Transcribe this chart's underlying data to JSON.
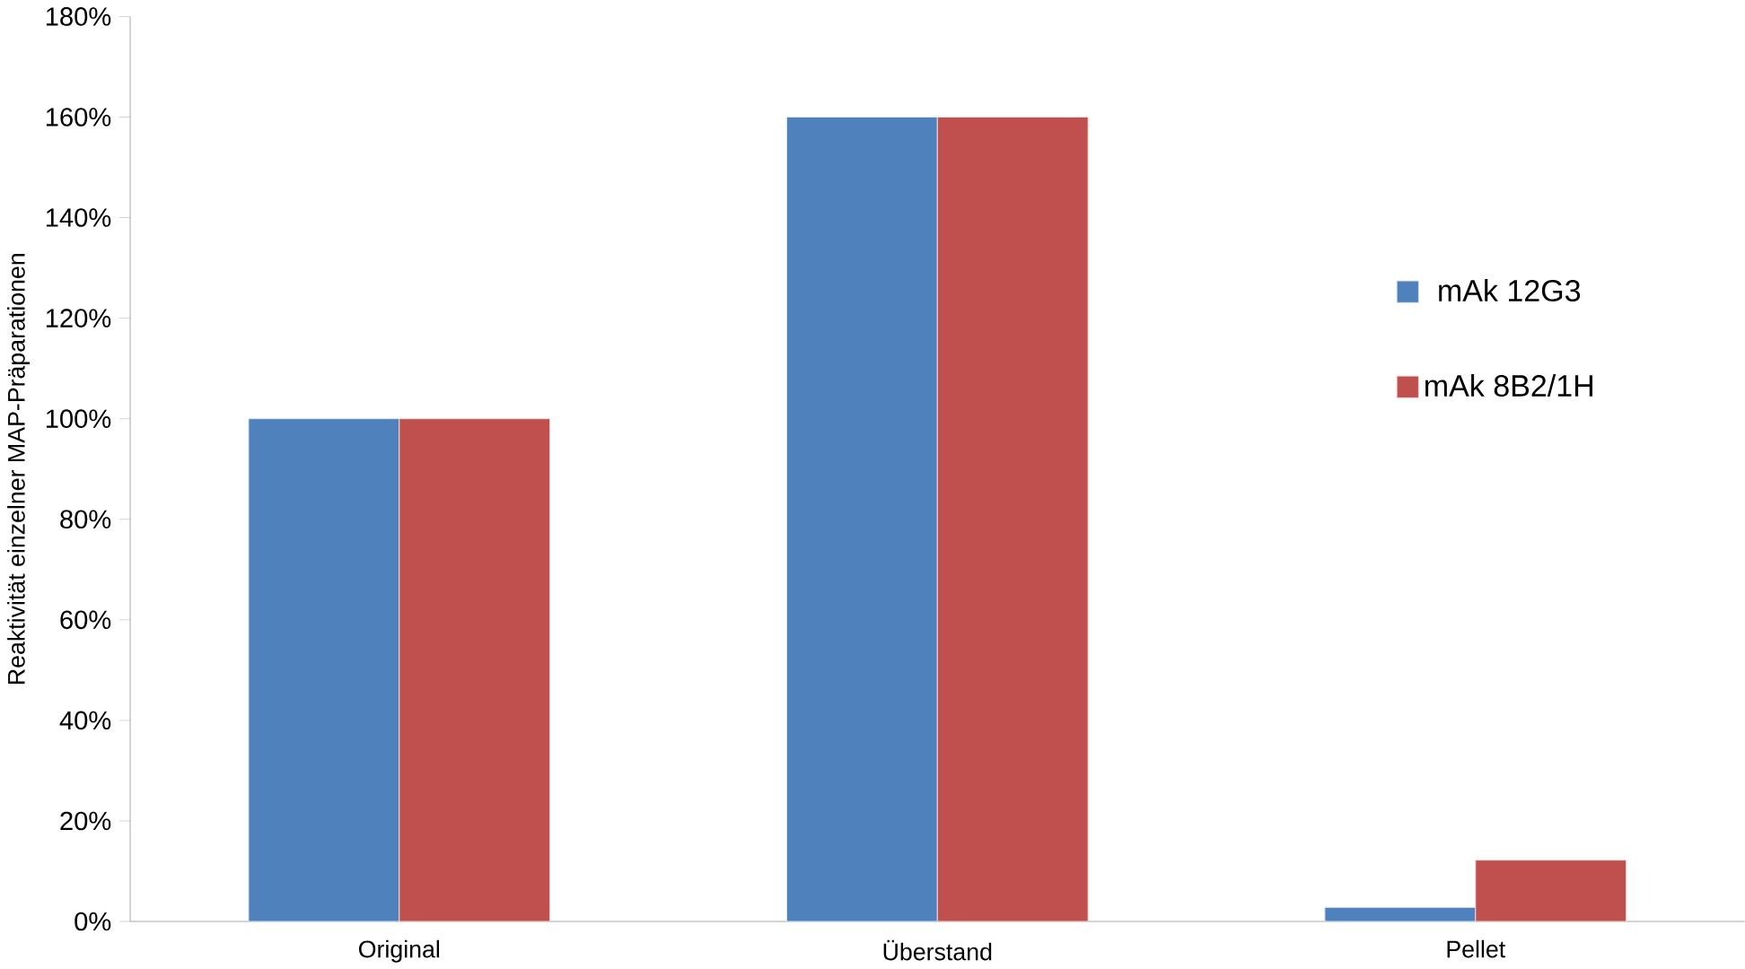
{
  "chart_data": {
    "type": "bar",
    "ylabel": "Reaktivität einzelner MAP-Präparationen",
    "categories": [
      "Original",
      "Überstand",
      "Pellet"
    ],
    "series": [
      {
        "name": "mAk 12G3",
        "color": "#4f81bd",
        "values": [
          100,
          160,
          2.8
        ]
      },
      {
        "name": "mAk 8B2/1H",
        "color": "#c0504d",
        "values": [
          100,
          160,
          12.2
        ]
      }
    ],
    "ylim": [
      0,
      180
    ],
    "yticks": [
      {
        "value": 0,
        "label": "0%"
      },
      {
        "value": 20,
        "label": "20%"
      },
      {
        "value": 40,
        "label": "40%"
      },
      {
        "value": 60,
        "label": "60%"
      },
      {
        "value": 80,
        "label": "80%"
      },
      {
        "value": 100,
        "label": "100%"
      },
      {
        "value": 120,
        "label": "120%"
      },
      {
        "value": 140,
        "label": "140%"
      },
      {
        "value": 160,
        "label": "160%"
      },
      {
        "value": 180,
        "label": "180%"
      }
    ],
    "grid": false,
    "legend": "right"
  }
}
